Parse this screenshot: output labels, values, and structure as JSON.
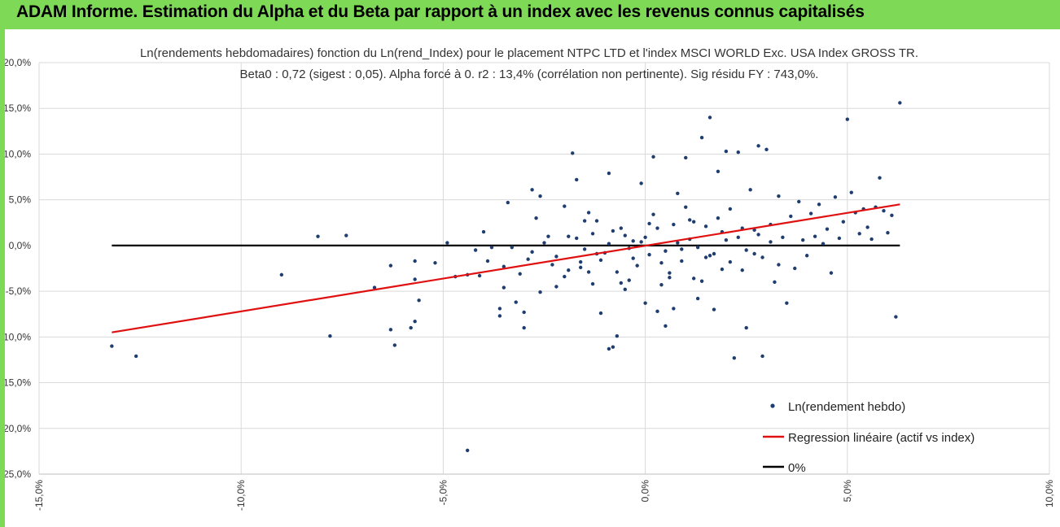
{
  "banner": {
    "title": "ADAM Informe. Estimation du Alpha et du Beta par rapport à un index avec les revenus connus capitalisés"
  },
  "colors": {
    "banner": "#7ed957",
    "dots": "#1f3d6e",
    "regression": "#e01010",
    "zero": "#000000",
    "grid": "#d9d9d9"
  },
  "chart_data": {
    "type": "scatter",
    "title_lines": [
      "Ln(rendements hebdomadaires) fonction du Ln(rend_Index) pour le placement NTPC LTD et l'index MSCI WORLD Exc. USA Index GROSS TR.",
      "Beta0 : 0,72  (sigest : 0,05).  Alpha forcé à 0. r2 : 13,4% (corrélation non pertinente). Sig résidu FY : 743,0%."
    ],
    "xlabel": "",
    "ylabel": "",
    "xlim": [
      -15,
      10
    ],
    "ylim": [
      -25,
      20
    ],
    "x_ticks": [
      "-15,0%",
      "-10,0%",
      "-5,0%",
      "0,0%",
      "5,0%",
      "10,0%"
    ],
    "x_tick_values": [
      -15,
      -10,
      -5,
      0,
      5,
      10
    ],
    "y_ticks": [
      "20,0%",
      "15,0%",
      "10,0%",
      "5,0%",
      "0,0%",
      "-5,0%",
      "-10,0%",
      "-15,0%",
      "-20,0%",
      "-25,0%"
    ],
    "y_tick_values": [
      20,
      15,
      10,
      5,
      0,
      -5,
      -10,
      -15,
      -20,
      -25
    ],
    "grid": "horizontal-and-vertical",
    "legend_position": "bottom-right",
    "series": [
      {
        "name": "Ln(rendement hebdo)",
        "kind": "scatter",
        "points": [
          [
            -13.2,
            -11.0
          ],
          [
            -12.6,
            -12.1
          ],
          [
            -9.0,
            -3.2
          ],
          [
            -8.1,
            1.0
          ],
          [
            -7.8,
            -9.9
          ],
          [
            -7.4,
            1.1
          ],
          [
            -6.7,
            -4.6
          ],
          [
            -6.3,
            -9.2
          ],
          [
            -6.3,
            -2.2
          ],
          [
            -6.2,
            -10.9
          ],
          [
            -5.8,
            -9.0
          ],
          [
            -5.7,
            -8.3
          ],
          [
            -5.6,
            -6.0
          ],
          [
            -5.7,
            -1.7
          ],
          [
            -5.7,
            -3.7
          ],
          [
            -5.2,
            -1.9
          ],
          [
            -4.9,
            0.3
          ],
          [
            -4.7,
            -3.4
          ],
          [
            -4.4,
            -22.4
          ],
          [
            -4.4,
            -3.2
          ],
          [
            -4.2,
            -0.5
          ],
          [
            -4.0,
            1.5
          ],
          [
            -4.1,
            -3.3
          ],
          [
            -3.9,
            -1.7
          ],
          [
            -3.8,
            -0.2
          ],
          [
            -3.6,
            -6.9
          ],
          [
            -3.6,
            -7.7
          ],
          [
            -3.5,
            -4.6
          ],
          [
            -3.5,
            -2.3
          ],
          [
            -3.4,
            4.7
          ],
          [
            -3.3,
            -0.2
          ],
          [
            -3.2,
            -6.2
          ],
          [
            -3.1,
            -3.1
          ],
          [
            -3.0,
            -7.3
          ],
          [
            -3.0,
            -9.0
          ],
          [
            -2.9,
            -1.5
          ],
          [
            -2.8,
            6.1
          ],
          [
            -2.7,
            3.0
          ],
          [
            -2.6,
            5.4
          ],
          [
            -2.6,
            -5.1
          ],
          [
            -2.4,
            1.0
          ],
          [
            -2.3,
            -2.1
          ],
          [
            -2.2,
            -4.5
          ],
          [
            -2.0,
            4.3
          ],
          [
            -1.9,
            1.0
          ],
          [
            -1.8,
            10.1
          ],
          [
            -1.7,
            7.2
          ],
          [
            -1.6,
            -1.8
          ],
          [
            -1.5,
            2.7
          ],
          [
            -1.4,
            -2.9
          ],
          [
            -1.3,
            -4.2
          ],
          [
            -1.2,
            2.7
          ],
          [
            -1.1,
            -7.4
          ],
          [
            -1.0,
            -0.8
          ],
          [
            -0.9,
            7.9
          ],
          [
            -0.9,
            -11.3
          ],
          [
            -0.8,
            -11.1
          ],
          [
            -0.7,
            -9.9
          ],
          [
            -0.6,
            1.9
          ],
          [
            -0.5,
            -4.8
          ],
          [
            -0.4,
            -3.8
          ],
          [
            -0.3,
            0.5
          ],
          [
            -0.2,
            -2.2
          ],
          [
            -0.1,
            6.8
          ],
          [
            0.0,
            -6.3
          ],
          [
            0.1,
            2.4
          ],
          [
            0.2,
            9.7
          ],
          [
            0.3,
            -7.2
          ],
          [
            0.4,
            -4.3
          ],
          [
            0.5,
            -8.8
          ],
          [
            0.6,
            -3.0
          ],
          [
            0.7,
            -6.9
          ],
          [
            0.8,
            5.7
          ],
          [
            0.9,
            -0.4
          ],
          [
            1.0,
            9.6
          ],
          [
            1.1,
            2.8
          ],
          [
            1.2,
            -3.6
          ],
          [
            1.3,
            -5.8
          ],
          [
            1.4,
            11.8
          ],
          [
            1.5,
            -1.3
          ],
          [
            1.6,
            14.0
          ],
          [
            1.7,
            -7.0
          ],
          [
            1.8,
            8.1
          ],
          [
            1.9,
            -2.6
          ],
          [
            2.0,
            10.3
          ],
          [
            2.1,
            4.0
          ],
          [
            2.2,
            -12.3
          ],
          [
            2.3,
            10.2
          ],
          [
            2.4,
            1.9
          ],
          [
            2.5,
            -9.0
          ],
          [
            2.6,
            6.1
          ],
          [
            2.7,
            -0.9
          ],
          [
            2.8,
            10.9
          ],
          [
            2.9,
            -12.1
          ],
          [
            3.0,
            10.5
          ],
          [
            3.1,
            2.3
          ],
          [
            3.2,
            -4.0
          ],
          [
            3.3,
            5.4
          ],
          [
            3.4,
            0.9
          ],
          [
            3.5,
            -6.3
          ],
          [
            3.6,
            3.2
          ],
          [
            3.7,
            -2.5
          ],
          [
            3.8,
            4.8
          ],
          [
            3.9,
            0.6
          ],
          [
            4.0,
            -1.1
          ],
          [
            4.1,
            3.5
          ],
          [
            4.2,
            1.0
          ],
          [
            4.3,
            4.5
          ],
          [
            4.4,
            0.2
          ],
          [
            4.5,
            1.8
          ],
          [
            4.6,
            -3.0
          ],
          [
            4.7,
            5.3
          ],
          [
            4.8,
            0.8
          ],
          [
            4.9,
            2.6
          ],
          [
            5.0,
            13.8
          ],
          [
            5.1,
            5.8
          ],
          [
            5.2,
            3.6
          ],
          [
            5.3,
            1.3
          ],
          [
            5.4,
            4.0
          ],
          [
            5.5,
            2.0
          ],
          [
            5.6,
            0.7
          ],
          [
            5.7,
            4.2
          ],
          [
            5.8,
            7.4
          ],
          [
            5.9,
            3.8
          ],
          [
            6.0,
            1.4
          ],
          [
            6.1,
            3.3
          ],
          [
            6.2,
            -7.8
          ],
          [
            6.3,
            15.6
          ],
          [
            -2.8,
            -0.7
          ],
          [
            -2.5,
            0.3
          ],
          [
            -2.2,
            -1.2
          ],
          [
            -1.9,
            -2.7
          ],
          [
            -1.7,
            0.8
          ],
          [
            -1.5,
            -0.4
          ],
          [
            -1.3,
            1.3
          ],
          [
            -1.1,
            -1.6
          ],
          [
            -0.9,
            0.2
          ],
          [
            -0.7,
            -2.9
          ],
          [
            -0.5,
            1.1
          ],
          [
            -0.3,
            -1.4
          ],
          [
            -0.1,
            0.4
          ],
          [
            0.1,
            -1.0
          ],
          [
            0.3,
            1.9
          ],
          [
            0.5,
            -0.6
          ],
          [
            0.7,
            2.3
          ],
          [
            0.9,
            -1.7
          ],
          [
            1.1,
            0.7
          ],
          [
            1.3,
            -0.2
          ],
          [
            1.5,
            2.1
          ],
          [
            1.7,
            -0.9
          ],
          [
            1.9,
            1.5
          ],
          [
            2.1,
            -1.8
          ],
          [
            2.3,
            0.9
          ],
          [
            2.5,
            -0.5
          ],
          [
            2.7,
            1.7
          ],
          [
            2.9,
            -1.3
          ],
          [
            3.1,
            0.4
          ],
          [
            3.3,
            -2.1
          ],
          [
            -1.6,
            -2.4
          ],
          [
            -1.2,
            -0.9
          ],
          [
            -0.8,
            1.6
          ],
          [
            -0.4,
            -0.3
          ],
          [
            0.0,
            0.9
          ],
          [
            0.4,
            -1.9
          ],
          [
            0.8,
            0.3
          ],
          [
            1.2,
            2.6
          ],
          [
            1.6,
            -1.1
          ],
          [
            2.0,
            0.6
          ],
          [
            2.4,
            -2.7
          ],
          [
            2.8,
            1.2
          ],
          [
            -2.0,
            -3.4
          ],
          [
            -1.4,
            3.6
          ],
          [
            -0.6,
            -4.1
          ],
          [
            0.2,
            3.4
          ],
          [
            0.6,
            -3.5
          ],
          [
            1.0,
            4.2
          ],
          [
            1.4,
            -3.9
          ],
          [
            1.8,
            3.0
          ]
        ]
      },
      {
        "name": "Regression linéaire (actif vs index)",
        "kind": "line",
        "x": [
          -13.2,
          6.3
        ],
        "y": [
          -9.5,
          4.5
        ]
      },
      {
        "name": "0%",
        "kind": "line",
        "x": [
          -13.2,
          6.3
        ],
        "y": [
          0,
          0
        ]
      }
    ]
  }
}
